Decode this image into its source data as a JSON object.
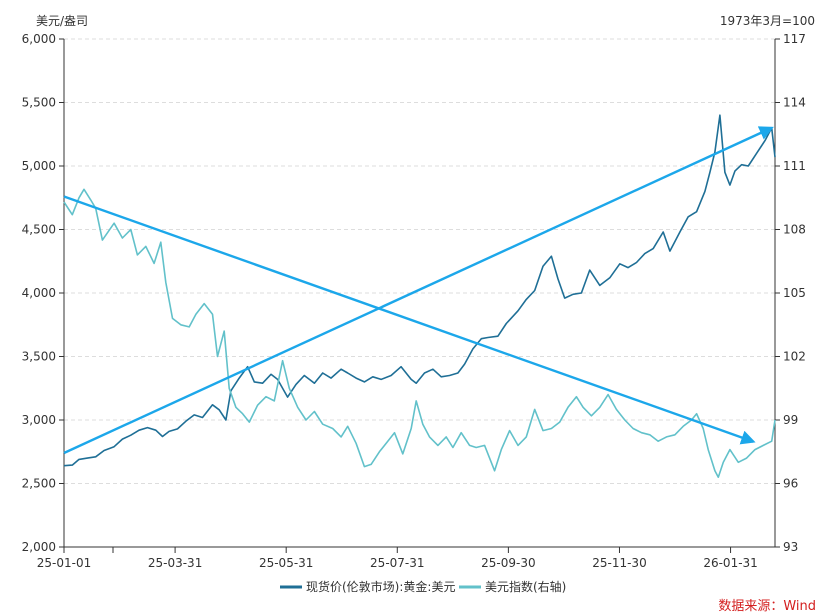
{
  "colors": {
    "gold": "#1f6f96",
    "usd": "#62c1ca",
    "arrow": "#1ca7ea",
    "grid": "#dddddd",
    "source": "#d42020"
  },
  "source_note": "数据来源：Wind",
  "chart_data": {
    "type": "line",
    "left_unit": "美元/盎司",
    "right_unit": "1973年3月=100",
    "x_ticks": [
      "25-01-01",
      "25-03-31",
      "25-05-31",
      "25-07-31",
      "25-09-30",
      "25-11-30",
      "26-01-31"
    ],
    "y_left": {
      "min": 2000,
      "max": 6000,
      "ticks": [
        "2,000",
        "2,500",
        "3,000",
        "3,500",
        "4,000",
        "4,500",
        "5,000",
        "5,500",
        "6,000"
      ]
    },
    "y_right": {
      "min": 93,
      "max": 117,
      "ticks": [
        "93",
        "96",
        "99",
        "102",
        "105",
        "108",
        "111",
        "114",
        "117"
      ]
    },
    "legend": [
      "现货价(伦敦市场):黄金:美元",
      "美元指数(右轴)"
    ],
    "grid": true,
    "series": [
      {
        "name": "现货价(伦敦市场):黄金:美元",
        "axis": "left",
        "points": [
          [
            "2025-01-01",
            2640
          ],
          [
            "2025-01-06",
            2645
          ],
          [
            "2025-01-10",
            2690
          ],
          [
            "2025-01-15",
            2700
          ],
          [
            "2025-01-20",
            2710
          ],
          [
            "2025-01-25",
            2760
          ],
          [
            "2025-01-31",
            2790
          ],
          [
            "2025-02-05",
            2850
          ],
          [
            "2025-02-10",
            2880
          ],
          [
            "2025-02-15",
            2920
          ],
          [
            "2025-02-20",
            2940
          ],
          [
            "2025-02-25",
            2920
          ],
          [
            "2025-03-01",
            2870
          ],
          [
            "2025-03-05",
            2910
          ],
          [
            "2025-03-10",
            2930
          ],
          [
            "2025-03-15",
            2990
          ],
          [
            "2025-03-20",
            3040
          ],
          [
            "2025-03-25",
            3020
          ],
          [
            "2025-03-31",
            3120
          ],
          [
            "2025-04-04",
            3080
          ],
          [
            "2025-04-08",
            3000
          ],
          [
            "2025-04-11",
            3230
          ],
          [
            "2025-04-16",
            3330
          ],
          [
            "2025-04-21",
            3420
          ],
          [
            "2025-04-25",
            3300
          ],
          [
            "2025-04-30",
            3290
          ],
          [
            "2025-05-05",
            3360
          ],
          [
            "2025-05-09",
            3320
          ],
          [
            "2025-05-15",
            3180
          ],
          [
            "2025-05-20",
            3280
          ],
          [
            "2025-05-25",
            3350
          ],
          [
            "2025-05-31",
            3290
          ],
          [
            "2025-06-05",
            3370
          ],
          [
            "2025-06-10",
            3330
          ],
          [
            "2025-06-16",
            3400
          ],
          [
            "2025-06-20",
            3370
          ],
          [
            "2025-06-25",
            3330
          ],
          [
            "2025-06-30",
            3300
          ],
          [
            "2025-07-05",
            3340
          ],
          [
            "2025-07-10",
            3320
          ],
          [
            "2025-07-16",
            3350
          ],
          [
            "2025-07-22",
            3420
          ],
          [
            "2025-07-28",
            3320
          ],
          [
            "2025-07-31",
            3290
          ],
          [
            "2025-08-05",
            3370
          ],
          [
            "2025-08-10",
            3400
          ],
          [
            "2025-08-15",
            3340
          ],
          [
            "2025-08-20",
            3350
          ],
          [
            "2025-08-25",
            3370
          ],
          [
            "2025-08-29",
            3440
          ],
          [
            "2025-09-03",
            3560
          ],
          [
            "2025-09-08",
            3640
          ],
          [
            "2025-09-12",
            3650
          ],
          [
            "2025-09-18",
            3660
          ],
          [
            "2025-09-23",
            3760
          ],
          [
            "2025-09-30",
            3860
          ],
          [
            "2025-10-05",
            3950
          ],
          [
            "2025-10-10",
            4020
          ],
          [
            "2025-10-15",
            4210
          ],
          [
            "2025-10-20",
            4290
          ],
          [
            "2025-10-24",
            4110
          ],
          [
            "2025-10-28",
            3960
          ],
          [
            "2025-11-02",
            3990
          ],
          [
            "2025-11-07",
            4000
          ],
          [
            "2025-11-12",
            4180
          ],
          [
            "2025-11-18",
            4060
          ],
          [
            "2025-11-24",
            4120
          ],
          [
            "2025-11-30",
            4230
          ],
          [
            "2025-12-05",
            4200
          ],
          [
            "2025-12-10",
            4240
          ],
          [
            "2025-12-15",
            4310
          ],
          [
            "2025-12-20",
            4350
          ],
          [
            "2025-12-26",
            4480
          ],
          [
            "2025-12-30",
            4330
          ],
          [
            "2026-01-05",
            4480
          ],
          [
            "2026-01-10",
            4600
          ],
          [
            "2026-01-15",
            4640
          ],
          [
            "2026-01-20",
            4800
          ],
          [
            "2026-01-23",
            4950
          ],
          [
            "2026-01-26",
            5110
          ],
          [
            "2026-01-29",
            5400
          ],
          [
            "2026-02-01",
            4950
          ],
          [
            "2026-02-04",
            4850
          ],
          [
            "2026-02-07",
            4960
          ],
          [
            "2026-02-11",
            5010
          ],
          [
            "2026-02-15",
            5000
          ],
          [
            "2026-02-20",
            5100
          ],
          [
            "2026-02-25",
            5200
          ],
          [
            "2026-03-01",
            5300
          ],
          [
            "2026-03-03",
            5070
          ]
        ]
      },
      {
        "name": "美元指数(右轴)",
        "axis": "right",
        "points": [
          [
            "2025-01-01",
            109.3
          ],
          [
            "2025-01-06",
            108.7
          ],
          [
            "2025-01-10",
            109.5
          ],
          [
            "2025-01-13",
            109.9
          ],
          [
            "2025-01-17",
            109.4
          ],
          [
            "2025-01-20",
            109.0
          ],
          [
            "2025-01-24",
            107.5
          ],
          [
            "2025-01-31",
            108.3
          ],
          [
            "2025-02-05",
            107.6
          ],
          [
            "2025-02-10",
            108.0
          ],
          [
            "2025-02-14",
            106.8
          ],
          [
            "2025-02-19",
            107.2
          ],
          [
            "2025-02-24",
            106.4
          ],
          [
            "2025-02-28",
            107.4
          ],
          [
            "2025-03-03",
            105.5
          ],
          [
            "2025-03-07",
            103.8
          ],
          [
            "2025-03-12",
            103.5
          ],
          [
            "2025-03-17",
            103.4
          ],
          [
            "2025-03-21",
            104.0
          ],
          [
            "2025-03-26",
            104.5
          ],
          [
            "2025-03-31",
            104.0
          ],
          [
            "2025-04-03",
            102.0
          ],
          [
            "2025-04-07",
            103.2
          ],
          [
            "2025-04-10",
            100.5
          ],
          [
            "2025-04-14",
            99.6
          ],
          [
            "2025-04-18",
            99.3
          ],
          [
            "2025-04-22",
            98.9
          ],
          [
            "2025-04-27",
            99.7
          ],
          [
            "2025-05-02",
            100.1
          ],
          [
            "2025-05-07",
            99.9
          ],
          [
            "2025-05-12",
            101.8
          ],
          [
            "2025-05-16",
            100.5
          ],
          [
            "2025-05-21",
            99.6
          ],
          [
            "2025-05-26",
            99.0
          ],
          [
            "2025-05-31",
            99.4
          ],
          [
            "2025-06-05",
            98.8
          ],
          [
            "2025-06-11",
            98.6
          ],
          [
            "2025-06-16",
            98.2
          ],
          [
            "2025-06-20",
            98.7
          ],
          [
            "2025-06-25",
            97.9
          ],
          [
            "2025-06-30",
            96.8
          ],
          [
            "2025-07-04",
            96.9
          ],
          [
            "2025-07-09",
            97.5
          ],
          [
            "2025-07-14",
            98.0
          ],
          [
            "2025-07-18",
            98.4
          ],
          [
            "2025-07-23",
            97.4
          ],
          [
            "2025-07-28",
            98.6
          ],
          [
            "2025-07-31",
            99.9
          ],
          [
            "2025-08-04",
            98.8
          ],
          [
            "2025-08-08",
            98.2
          ],
          [
            "2025-08-13",
            97.8
          ],
          [
            "2025-08-18",
            98.2
          ],
          [
            "2025-08-22",
            97.7
          ],
          [
            "2025-08-27",
            98.4
          ],
          [
            "2025-09-01",
            97.8
          ],
          [
            "2025-09-05",
            97.7
          ],
          [
            "2025-09-10",
            97.8
          ],
          [
            "2025-09-16",
            96.6
          ],
          [
            "2025-09-20",
            97.6
          ],
          [
            "2025-09-25",
            98.5
          ],
          [
            "2025-09-30",
            97.8
          ],
          [
            "2025-10-05",
            98.2
          ],
          [
            "2025-10-10",
            99.5
          ],
          [
            "2025-10-15",
            98.5
          ],
          [
            "2025-10-20",
            98.6
          ],
          [
            "2025-10-25",
            98.9
          ],
          [
            "2025-10-30",
            99.6
          ],
          [
            "2025-11-04",
            100.1
          ],
          [
            "2025-11-08",
            99.6
          ],
          [
            "2025-11-13",
            99.2
          ],
          [
            "2025-11-18",
            99.6
          ],
          [
            "2025-11-23",
            100.2
          ],
          [
            "2025-11-28",
            99.5
          ],
          [
            "2025-12-03",
            99.0
          ],
          [
            "2025-12-08",
            98.6
          ],
          [
            "2025-12-13",
            98.4
          ],
          [
            "2025-12-18",
            98.3
          ],
          [
            "2025-12-23",
            98.0
          ],
          [
            "2025-12-28",
            98.2
          ],
          [
            "2026-01-02",
            98.3
          ],
          [
            "2026-01-07",
            98.7
          ],
          [
            "2026-01-12",
            99.0
          ],
          [
            "2026-01-15",
            99.3
          ],
          [
            "2026-01-19",
            98.6
          ],
          [
            "2026-01-22",
            97.6
          ],
          [
            "2026-01-26",
            96.6
          ],
          [
            "2026-01-28",
            96.3
          ],
          [
            "2026-01-31",
            97.0
          ],
          [
            "2026-02-04",
            97.6
          ],
          [
            "2026-02-09",
            97.0
          ],
          [
            "2026-02-14",
            97.2
          ],
          [
            "2026-02-19",
            97.6
          ],
          [
            "2026-02-24",
            97.8
          ],
          [
            "2026-03-01",
            98.0
          ],
          [
            "2026-03-03",
            99.0
          ]
        ]
      }
    ],
    "annotations": [
      {
        "type": "arrow",
        "axis": "left",
        "from": [
          "2025-01-01",
          2740
        ],
        "to": [
          "2026-03-01",
          5300
        ]
      },
      {
        "type": "arrow",
        "axis": "left",
        "from": [
          "2025-01-01",
          4760
        ],
        "to": [
          "2026-02-18",
          2830
        ]
      }
    ]
  }
}
